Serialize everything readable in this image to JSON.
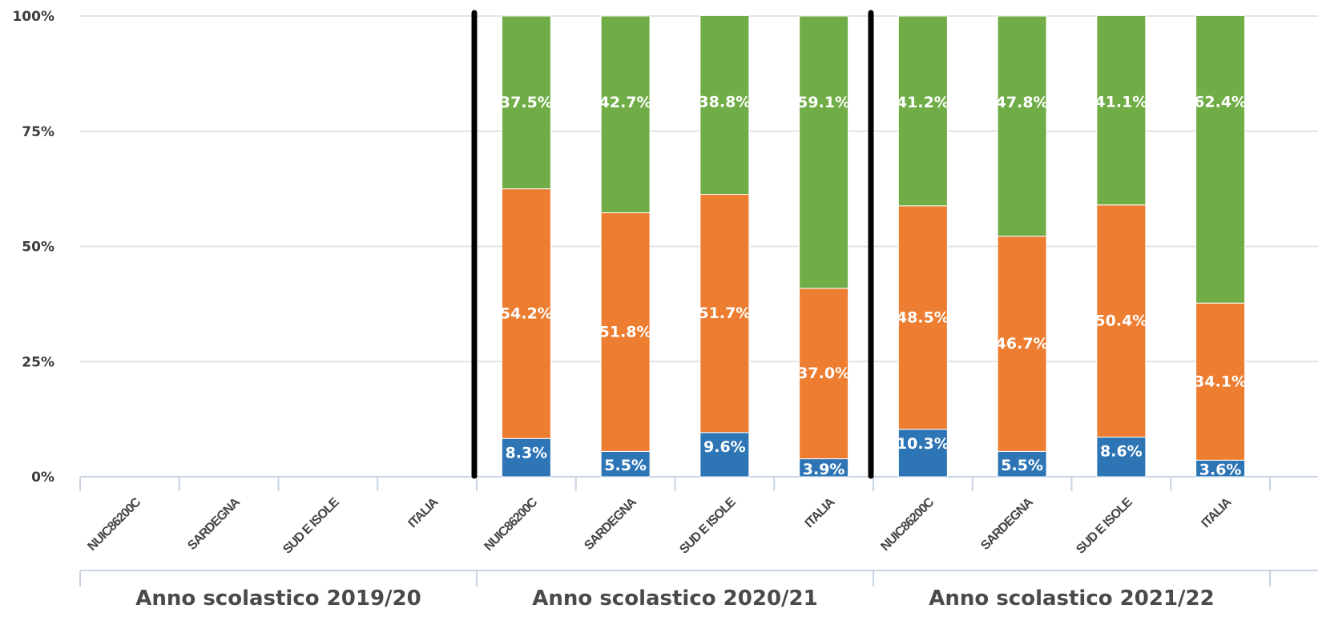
{
  "chart_data": {
    "type": "bar",
    "stacked": true,
    "groups": [
      "Anno scolastico 2019/20",
      "Anno scolastico 2020/21",
      "Anno scolastico 2021/22"
    ],
    "categories": [
      "NUIC86200C",
      "SARDEGNA",
      "SUD E ISOLE",
      "ITALIA"
    ],
    "series": [
      {
        "color": "#2e75b6",
        "values": [
          [
            null,
            null,
            null,
            null
          ],
          [
            8.3,
            5.5,
            9.6,
            3.9
          ],
          [
            10.3,
            5.5,
            8.6,
            3.6
          ]
        ],
        "labels": [
          [
            "",
            "",
            "",
            ""
          ],
          [
            "8.3%",
            "5.5%",
            "9.6%",
            "3.9%"
          ],
          [
            "10.3%",
            "5.5%",
            "8.6%",
            "3.6%"
          ]
        ]
      },
      {
        "color": "#ed7d31",
        "values": [
          [
            null,
            null,
            null,
            null
          ],
          [
            54.2,
            51.8,
            51.7,
            37.0
          ],
          [
            48.5,
            46.7,
            50.4,
            34.1
          ]
        ],
        "labels": [
          [
            "",
            "",
            "",
            ""
          ],
          [
            "54.2%",
            "51.8%",
            "51.7%",
            "37.0%"
          ],
          [
            "48.5%",
            "46.7%",
            "50.4%",
            "34.1%"
          ]
        ]
      },
      {
        "color": "#70ad47",
        "values": [
          [
            null,
            null,
            null,
            null
          ],
          [
            37.5,
            42.7,
            38.8,
            59.1
          ],
          [
            41.2,
            47.8,
            41.1,
            62.4
          ]
        ],
        "labels": [
          [
            "",
            "",
            "",
            ""
          ],
          [
            "37.5%",
            "42.7%",
            "38.8%",
            "59.1%"
          ],
          [
            "41.2%",
            "47.8%",
            "41.1%",
            "62.4%"
          ]
        ]
      }
    ],
    "yticks": [
      "0%",
      "25%",
      "50%",
      "75%",
      "100%"
    ],
    "ylim": [
      0,
      100
    ],
    "grid": true,
    "legend": "none"
  }
}
